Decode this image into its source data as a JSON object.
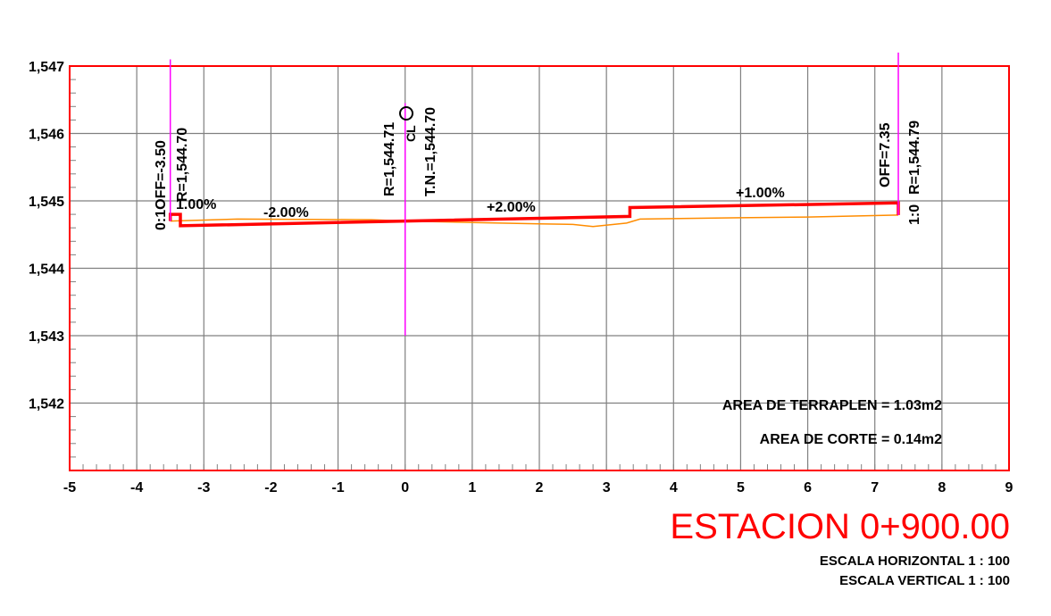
{
  "chart_data": {
    "type": "line",
    "xlim": [
      -5,
      9
    ],
    "ylim": [
      1541.0,
      1547.0
    ],
    "x_ticks": [
      "-5",
      "-4",
      "-3",
      "-2",
      "-1",
      "0",
      "1",
      "2",
      "3",
      "4",
      "5",
      "6",
      "7",
      "8",
      "9"
    ],
    "y_ticks": [
      "1,547",
      "1,546",
      "1,545",
      "1,544",
      "1,543",
      "1,542"
    ],
    "y_tick_values": [
      1547,
      1546,
      1545,
      1544,
      1543,
      1542
    ],
    "grid": true,
    "series": [
      {
        "color": "#ff0000",
        "points": [
          [
            -3.5,
            1544.7
          ],
          [
            -3.5,
            1544.8
          ],
          [
            -3.35,
            1544.8
          ],
          [
            -3.35,
            1544.63
          ],
          [
            3.35,
            1544.77
          ],
          [
            3.35,
            1544.9
          ],
          [
            7.35,
            1544.97
          ],
          [
            7.35,
            1544.79
          ]
        ]
      },
      {
        "color": "#ff8c00",
        "points": [
          [
            -3.5,
            1544.7
          ],
          [
            -2.5,
            1544.73
          ],
          [
            -0.5,
            1544.72
          ],
          [
            0,
            1544.7
          ],
          [
            1,
            1544.68
          ],
          [
            2,
            1544.66
          ],
          [
            2.5,
            1544.65
          ],
          [
            2.8,
            1544.62
          ],
          [
            3.3,
            1544.67
          ],
          [
            3.5,
            1544.73
          ],
          [
            5,
            1544.75
          ],
          [
            6,
            1544.76
          ],
          [
            7.35,
            1544.79
          ]
        ]
      }
    ],
    "verticals": [
      {
        "x": -3.5,
        "color": "#ff00ff",
        "y_top": 1547.1,
        "y_bottom": 1544.7
      },
      {
        "x": 0,
        "color": "#ff00ff",
        "y_top": 1546.45,
        "y_bottom": 1543.0
      },
      {
        "x": 7.35,
        "color": "#ff00ff",
        "y_top": 1547.2,
        "y_bottom": 1544.79
      }
    ],
    "annotations": {
      "left_off": "0:1OFF=-3.50",
      "left_r": "R=1,544.70",
      "left_slope": "1.00%",
      "center_r": "R=1,544.71",
      "center_tn": "T.N.=1,544.70",
      "center_cl": "CL",
      "right_off": "OFF=7.35",
      "right_r": "R=1,544.79",
      "right_ratio": "1:0",
      "slope_left": "-2.00%",
      "slope_mid": "+2.00%",
      "slope_right": "+1.00%"
    },
    "area_fill": "AREA DE TERRAPLEN = 1.03m2",
    "area_cut": "AREA DE CORTE = 0.14m2"
  },
  "title": "ESTACION 0+900.00",
  "scale_h": "ESCALA HORIZONTAL 1 : 100",
  "scale_v": "ESCALA VERTICAL 1 : 100",
  "colors": {
    "frame": "#ff0000",
    "grid": "#808080",
    "road": "#ff0000",
    "terrain": "#ff8c00",
    "guide": "#ff00ff"
  }
}
